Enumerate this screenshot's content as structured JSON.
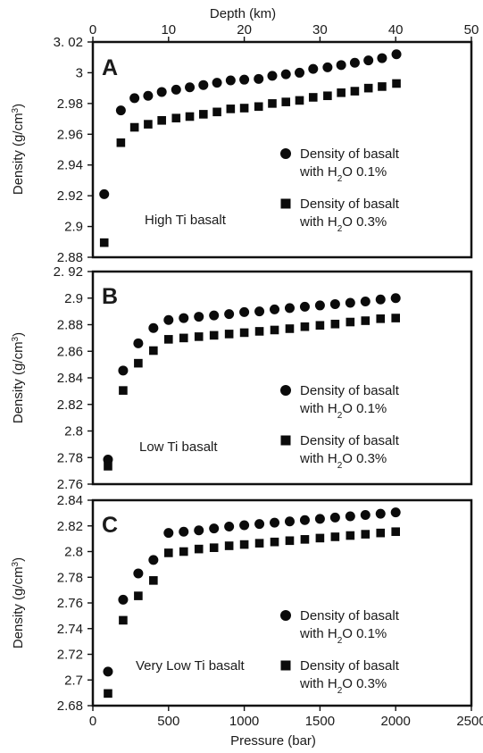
{
  "figure": {
    "top_axis_label": "Depth (km)",
    "top_ticks": [
      "0",
      "10",
      "20",
      "30",
      "40",
      "50"
    ],
    "bottom_axis_label": "Pressure (bar)",
    "bottom_ticks": [
      "0",
      "500",
      "1000",
      "1500",
      "2000",
      "2500"
    ]
  },
  "chart_data": [
    {
      "type": "scatter",
      "panel": "A",
      "annotation": "High Ti basalt",
      "xlabel": "Pressure (bar)",
      "ylabel": "Density (g/cm³)",
      "x2label": "Depth (km)",
      "x2lim": [
        0,
        50
      ],
      "ylim": [
        2.88,
        3.02
      ],
      "yticks": [
        "3. 02",
        "3",
        "2.98",
        "2.96",
        "2.94",
        "2.92",
        "2.9",
        "2.88"
      ],
      "ytick_values": [
        3.02,
        3.0,
        2.98,
        2.96,
        2.94,
        2.92,
        2.9,
        2.88
      ],
      "legend_position": "center-right",
      "x": [
        1.5,
        3.7,
        5.5,
        7.3,
        9.1,
        11.0,
        12.8,
        14.6,
        16.4,
        18.2,
        20.0,
        21.9,
        23.7,
        25.5,
        27.3,
        29.1,
        31.0,
        32.8,
        34.6,
        36.4,
        38.2,
        40.1
      ],
      "series": [
        {
          "name": "Density of basalt with H₂O 0.1%",
          "legend_line1": "Density of basalt",
          "legend_line2_prefix": "with H",
          "legend_line2_sub": "2",
          "legend_line2_suffix": "O 0.1%",
          "marker": "circle",
          "values": [
            2.921,
            2.9755,
            2.9835,
            2.985,
            2.9875,
            2.989,
            2.9905,
            2.992,
            2.9935,
            2.995,
            2.9955,
            2.996,
            2.998,
            2.999,
            3.0,
            3.0025,
            3.0035,
            3.005,
            3.0065,
            3.008,
            3.0095,
            3.012
          ]
        },
        {
          "name": "Density of basalt with H₂O 0.3%",
          "legend_line1": "Density of basalt",
          "legend_line2_prefix": "with H",
          "legend_line2_sub": "2",
          "legend_line2_suffix": "O 0.3%",
          "marker": "square",
          "values": [
            2.8895,
            2.9545,
            2.9645,
            2.9665,
            2.969,
            2.9705,
            2.9715,
            2.973,
            2.9745,
            2.9765,
            2.977,
            2.978,
            2.98,
            2.981,
            2.982,
            2.984,
            2.985,
            2.987,
            2.988,
            2.99,
            2.991,
            2.993
          ]
        }
      ]
    },
    {
      "type": "scatter",
      "panel": "B",
      "annotation": "Low Ti basalt",
      "xlabel": "Pressure (bar)",
      "ylabel": "Density (g/cm³)",
      "xlim": [
        0,
        2500
      ],
      "ylim": [
        2.76,
        2.92
      ],
      "yticks": [
        "2. 92",
        "2.9",
        "2.88",
        "2.86",
        "2.84",
        "2.82",
        "2.8",
        "2.78",
        "2.76"
      ],
      "ytick_values": [
        2.92,
        2.9,
        2.88,
        2.86,
        2.84,
        2.82,
        2.8,
        2.78,
        2.76
      ],
      "legend_position": "lower-right",
      "x": [
        100,
        200,
        300,
        400,
        500,
        600,
        700,
        800,
        900,
        1000,
        1100,
        1200,
        1300,
        1400,
        1500,
        1600,
        1700,
        1800,
        1900,
        2000
      ],
      "series": [
        {
          "name": "Density of basalt with H₂O 0.1%",
          "legend_line1": "Density of basalt",
          "legend_line2_prefix": "with H",
          "legend_line2_sub": "2",
          "legend_line2_suffix": "O 0.1%",
          "marker": "circle",
          "values": [
            2.7785,
            2.8455,
            2.866,
            2.8775,
            2.8835,
            2.885,
            2.886,
            2.887,
            2.888,
            2.8895,
            2.89,
            2.8915,
            2.8925,
            2.8935,
            2.8945,
            2.8955,
            2.8965,
            2.8975,
            2.899,
            2.9
          ]
        },
        {
          "name": "Density of basalt with H₂O 0.3%",
          "legend_line1": "Density of basalt",
          "legend_line2_prefix": "with H",
          "legend_line2_sub": "2",
          "legend_line2_suffix": "O 0.3%",
          "marker": "square",
          "values": [
            2.7735,
            2.8305,
            2.851,
            2.8605,
            2.869,
            2.87,
            2.871,
            2.872,
            2.873,
            2.874,
            2.875,
            2.876,
            2.877,
            2.8785,
            2.8795,
            2.8805,
            2.882,
            2.883,
            2.8845,
            2.885
          ]
        }
      ]
    },
    {
      "type": "scatter",
      "panel": "C",
      "annotation": "Very Low Ti basalt",
      "xlabel": "Pressure (bar)",
      "ylabel": "Density (g/cm³)",
      "xlim": [
        0,
        2500
      ],
      "ylim": [
        2.68,
        2.84
      ],
      "yticks": [
        "2.84",
        "2.82",
        "2.8",
        "2.78",
        "2.76",
        "2.74",
        "2.72",
        "2.7",
        "2.68"
      ],
      "ytick_values": [
        2.84,
        2.82,
        2.8,
        2.78,
        2.76,
        2.74,
        2.72,
        2.7,
        2.68
      ],
      "legend_position": "lower-right",
      "x": [
        100,
        200,
        300,
        400,
        500,
        600,
        700,
        800,
        900,
        1000,
        1100,
        1200,
        1300,
        1400,
        1500,
        1600,
        1700,
        1800,
        1900,
        2000
      ],
      "series": [
        {
          "name": "Density of basalt with H₂O 0.1%",
          "legend_line1": "Density of basalt",
          "legend_line2_prefix": "with H",
          "legend_line2_sub": "2",
          "legend_line2_suffix": "O 0.1%",
          "marker": "circle",
          "values": [
            2.7065,
            2.7625,
            2.783,
            2.7935,
            2.8145,
            2.8155,
            2.8165,
            2.818,
            2.8195,
            2.8205,
            2.8215,
            2.8225,
            2.8235,
            2.8245,
            2.8255,
            2.8265,
            2.8275,
            2.8285,
            2.8295,
            2.8305
          ]
        },
        {
          "name": "Density of basalt with H₂O 0.3%",
          "legend_line1": "Density of basalt",
          "legend_line2_prefix": "with H",
          "legend_line2_sub": "2",
          "legend_line2_suffix": "O 0.3%",
          "marker": "square",
          "values": [
            2.6895,
            2.7465,
            2.7655,
            2.7775,
            2.799,
            2.8,
            2.802,
            2.803,
            2.8045,
            2.8055,
            2.8065,
            2.8075,
            2.8085,
            2.8095,
            2.8105,
            2.8115,
            2.8125,
            2.8135,
            2.8145,
            2.8155
          ]
        }
      ]
    }
  ]
}
